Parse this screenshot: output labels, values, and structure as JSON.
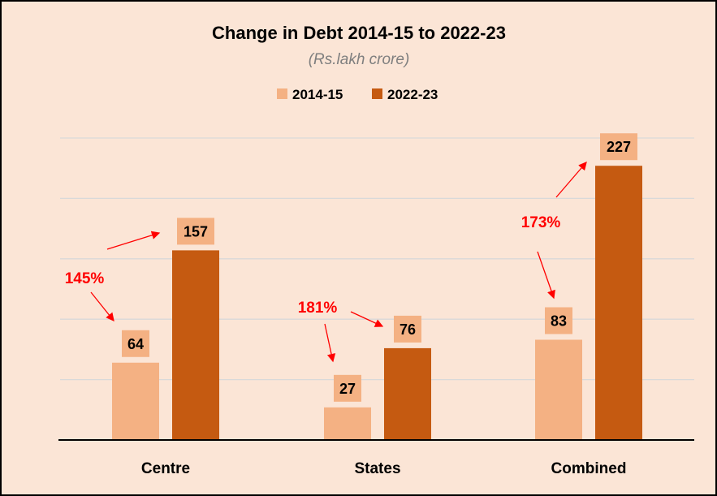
{
  "chart_data": {
    "type": "bar",
    "title": "Change in Debt 2014-15 to 2022-23",
    "subtitle": "(Rs.lakh crore)",
    "categories": [
      "Centre",
      "States",
      "Combined"
    ],
    "series": [
      {
        "name": "2014-15",
        "values": [
          64,
          27,
          83
        ],
        "color": "#F4B183"
      },
      {
        "name": "2022-23",
        "values": [
          157,
          76,
          227
        ],
        "color": "#C55A11"
      }
    ],
    "annotations": [
      "145%",
      "181%",
      "173%"
    ],
    "annotation_color": "#FF0000",
    "ylim": [
      0,
      250
    ],
    "gridlines": [
      50,
      100,
      150,
      200,
      250
    ],
    "grid": true,
    "y_axis_labels_shown": false,
    "legend_position": "top",
    "background": "#FBE5D6"
  }
}
